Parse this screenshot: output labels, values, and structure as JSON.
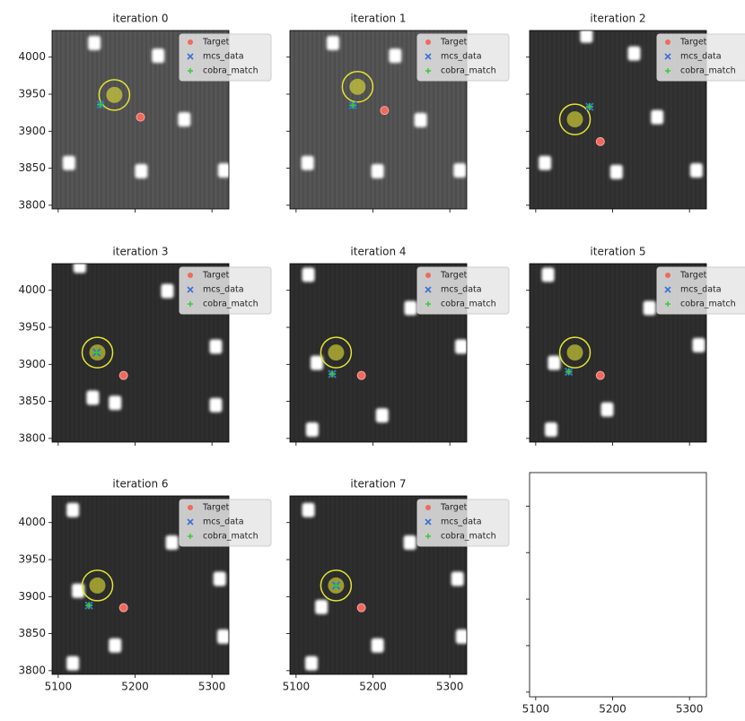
{
  "chart_data": [
    {
      "type": "scatter",
      "title": "iteration 0",
      "xlim": [
        5092,
        5322
      ],
      "ylim": [
        3795,
        4036
      ],
      "xticks": [
        5100,
        5200,
        5300
      ],
      "yticks": [
        3800,
        3850,
        3900,
        3950,
        4000
      ],
      "image_color": "#555555",
      "legend": "upper right",
      "stars": {
        "x": [
          5147,
          5230,
          5264,
          5114,
          5208,
          5316
        ],
        "y": [
          4019,
          4002,
          3916,
          3857,
          3846,
          3847
        ]
      },
      "circle": {
        "x": 5173,
        "y": 3949,
        "color": "#e4e433"
      },
      "series": [
        {
          "name": "Target",
          "color": "#f0695a",
          "x": [
            5207
          ],
          "y": [
            3919
          ]
        },
        {
          "name": "mcs_data",
          "color": "#3b6fd6",
          "x": [
            5155
          ],
          "y": [
            3936
          ]
        },
        {
          "name": "cobra_match",
          "color": "#33cc33",
          "x": [
            5155
          ],
          "y": [
            3936
          ]
        }
      ]
    },
    {
      "type": "scatter",
      "title": "iteration 1",
      "xlim": [
        5092,
        5322
      ],
      "ylim": [
        3795,
        4036
      ],
      "xticks": [
        5100,
        5200,
        5300
      ],
      "yticks": [
        3800,
        3850,
        3900,
        3950,
        4000
      ],
      "image_color": "#555555",
      "legend": "upper right",
      "stars": {
        "x": [
          5148,
          5229,
          5262,
          5115,
          5206,
          5313
        ],
        "y": [
          4019,
          4002,
          3915,
          3857,
          3846,
          3847
        ]
      },
      "circle": {
        "x": 5180,
        "y": 3960,
        "color": "#e4e433"
      },
      "series": [
        {
          "name": "Target",
          "color": "#f0695a",
          "x": [
            5215
          ],
          "y": [
            3928
          ]
        },
        {
          "name": "mcs_data",
          "color": "#3b6fd6",
          "x": [
            5174
          ],
          "y": [
            3935
          ]
        },
        {
          "name": "cobra_match",
          "color": "#33cc33",
          "x": [
            5174
          ],
          "y": [
            3935
          ]
        }
      ]
    },
    {
      "type": "scatter",
      "title": "iteration 2",
      "xlim": [
        5092,
        5322
      ],
      "ylim": [
        3795,
        4036
      ],
      "xticks": [
        5100,
        5200,
        5300
      ],
      "yticks": [
        3800,
        3850,
        3900,
        3950,
        4000
      ],
      "image_color": "#333333",
      "legend": "upper right",
      "stars": {
        "x": [
          5228,
          5258,
          5112,
          5205,
          5309,
          5166
        ],
        "y": [
          4005,
          3919,
          3857,
          3845,
          3847,
          4029
        ]
      },
      "circle": {
        "x": 5151,
        "y": 3916,
        "color": "#e4e433"
      },
      "series": [
        {
          "name": "Target",
          "color": "#f0695a",
          "x": [
            5184
          ],
          "y": [
            3886
          ]
        },
        {
          "name": "mcs_data",
          "color": "#3b6fd6",
          "x": [
            5170
          ],
          "y": [
            3933
          ]
        },
        {
          "name": "cobra_match",
          "color": "#33cc33",
          "x": [
            5170
          ],
          "y": [
            3933
          ]
        }
      ]
    },
    {
      "type": "scatter",
      "title": "iteration 3",
      "xlim": [
        5092,
        5322
      ],
      "ylim": [
        3795,
        4036
      ],
      "xticks": [
        5100,
        5200,
        5300
      ],
      "yticks": [
        3800,
        3850,
        3900,
        3950,
        4000
      ],
      "image_color": "#2e2e2e",
      "legend": "upper right",
      "stars": {
        "x": [
          5128,
          5242,
          5305,
          5174,
          5305,
          5145
        ],
        "y": [
          4033,
          3999,
          3924,
          3848,
          3845,
          3855
        ]
      },
      "circle": {
        "x": 5151,
        "y": 3916,
        "color": "#e4e433"
      },
      "series": [
        {
          "name": "Target",
          "color": "#f0695a",
          "x": [
            5185
          ],
          "y": [
            3885
          ]
        },
        {
          "name": "mcs_data",
          "color": "#3b6fd6",
          "x": [
            5150
          ],
          "y": [
            3916
          ]
        },
        {
          "name": "cobra_match",
          "color": "#33cc33",
          "x": [
            5150
          ],
          "y": [
            3916
          ]
        }
      ]
    },
    {
      "type": "scatter",
      "title": "iteration 4",
      "xlim": [
        5092,
        5322
      ],
      "ylim": [
        3795,
        4036
      ],
      "xticks": [
        5100,
        5200,
        5300
      ],
      "yticks": [
        3800,
        3850,
        3900,
        3950,
        4000
      ],
      "image_color": "#2e2e2e",
      "legend": "upper right",
      "stars": {
        "x": [
          5116,
          5249,
          5315,
          5212,
          5121,
          5127
        ],
        "y": [
          4021,
          3976,
          3924,
          3831,
          3812,
          3902
        ]
      },
      "circle": {
        "x": 5152,
        "y": 3916,
        "color": "#e4e433"
      },
      "series": [
        {
          "name": "Target",
          "color": "#f0695a",
          "x": [
            5185
          ],
          "y": [
            3885
          ]
        },
        {
          "name": "mcs_data",
          "color": "#3b6fd6",
          "x": [
            5147
          ],
          "y": [
            3887
          ]
        },
        {
          "name": "cobra_match",
          "color": "#33cc33",
          "x": [
            5147
          ],
          "y": [
            3887
          ]
        }
      ]
    },
    {
      "type": "scatter",
      "title": "iteration 5",
      "xlim": [
        5092,
        5322
      ],
      "ylim": [
        3795,
        4036
      ],
      "xticks": [
        5100,
        5200,
        5300
      ],
      "yticks": [
        3800,
        3850,
        3900,
        3950,
        4000
      ],
      "image_color": "#2e2e2e",
      "legend": "upper right",
      "stars": {
        "x": [
          5116,
          5248,
          5312,
          5193,
          5120,
          5124
        ],
        "y": [
          4021,
          3976,
          3926,
          3839,
          3812,
          3902
        ]
      },
      "circle": {
        "x": 5151,
        "y": 3916,
        "color": "#e4e433"
      },
      "series": [
        {
          "name": "Target",
          "color": "#f0695a",
          "x": [
            5184
          ],
          "y": [
            3885
          ]
        },
        {
          "name": "mcs_data",
          "color": "#3b6fd6",
          "x": [
            5143
          ],
          "y": [
            3890
          ]
        },
        {
          "name": "cobra_match",
          "color": "#33cc33",
          "x": [
            5143
          ],
          "y": [
            3890
          ]
        }
      ]
    },
    {
      "type": "scatter",
      "title": "iteration 6",
      "xlim": [
        5092,
        5322
      ],
      "ylim": [
        3795,
        4036
      ],
      "xticks": [
        5100,
        5200,
        5300
      ],
      "yticks": [
        3800,
        3850,
        3900,
        3950,
        4000
      ],
      "image_color": "#2e2e2e",
      "legend": "upper right",
      "stars": {
        "x": [
          5119,
          5248,
          5310,
          5174,
          5119,
          5126,
          5315
        ],
        "y": [
          4017,
          3973,
          3924,
          3834,
          3810,
          3908,
          3846
        ]
      },
      "circle": {
        "x": 5151,
        "y": 3915,
        "color": "#e4e433"
      },
      "series": [
        {
          "name": "Target",
          "color": "#f0695a",
          "x": [
            5185
          ],
          "y": [
            3885
          ]
        },
        {
          "name": "mcs_data",
          "color": "#3b6fd6",
          "x": [
            5140
          ],
          "y": [
            3888
          ]
        },
        {
          "name": "cobra_match",
          "color": "#33cc33",
          "x": [
            5140
          ],
          "y": [
            3888
          ]
        }
      ]
    },
    {
      "type": "scatter",
      "title": "iteration 7",
      "xlim": [
        5092,
        5322
      ],
      "ylim": [
        3795,
        4036
      ],
      "xticks": [
        5100,
        5200,
        5300
      ],
      "yticks": [
        3800,
        3850,
        3900,
        3950,
        4000
      ],
      "image_color": "#2e2e2e",
      "legend": "upper right",
      "stars": {
        "x": [
          5116,
          5248,
          5310,
          5206,
          5120,
          5133,
          5316
        ],
        "y": [
          4017,
          3973,
          3924,
          3834,
          3810,
          3886,
          3846
        ]
      },
      "circle": {
        "x": 5152,
        "y": 3915,
        "color": "#e4e433"
      },
      "series": [
        {
          "name": "Target",
          "color": "#f0695a",
          "x": [
            5185
          ],
          "y": [
            3885
          ]
        },
        {
          "name": "mcs_data",
          "color": "#3b6fd6",
          "x": [
            5152
          ],
          "y": [
            3915
          ]
        },
        {
          "name": "cobra_match",
          "color": "#33cc33",
          "x": [
            5152
          ],
          "y": [
            3915
          ]
        }
      ]
    },
    {
      "type": "scatter",
      "xlim": [
        5092,
        5322
      ],
      "ylim": [
        3795,
        4036
      ],
      "xticks": [
        5100,
        5200,
        5300
      ],
      "yticks": [
        3800,
        3850,
        3900,
        3950,
        4000
      ]
    }
  ]
}
